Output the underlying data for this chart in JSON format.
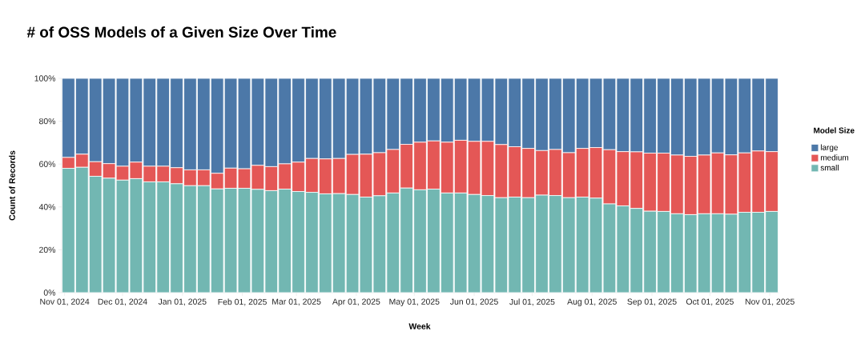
{
  "chart_data": {
    "type": "bar",
    "stacked": true,
    "title": "# of OSS Models of a Given Size Over Time",
    "xlabel": "Week",
    "ylabel": "Count of Records",
    "legend_title": "Model Size",
    "legend": "right",
    "x": [
      "2024-11-03",
      "2024-11-10",
      "2024-11-17",
      "2024-11-24",
      "2024-12-01",
      "2024-12-08",
      "2024-12-15",
      "2024-12-22",
      "2024-12-29",
      "2025-01-05",
      "2025-01-12",
      "2025-01-19",
      "2025-01-26",
      "2025-02-02",
      "2025-02-09",
      "2025-02-16",
      "2025-02-23",
      "2025-03-02",
      "2025-03-09",
      "2025-03-16",
      "2025-03-23",
      "2025-03-30",
      "2025-04-06",
      "2025-04-13",
      "2025-04-20",
      "2025-04-27",
      "2025-05-04",
      "2025-05-11",
      "2025-05-18",
      "2025-05-25",
      "2025-06-01",
      "2025-06-08",
      "2025-06-15",
      "2025-06-22",
      "2025-06-29",
      "2025-07-06",
      "2025-07-13",
      "2025-07-20",
      "2025-07-27",
      "2025-08-03",
      "2025-08-10",
      "2025-08-17",
      "2025-08-24",
      "2025-08-31",
      "2025-09-07",
      "2025-09-14",
      "2025-09-21",
      "2025-09-28",
      "2025-10-05",
      "2025-10-12",
      "2025-10-19",
      "2025-10-26",
      "2025-11-02"
    ],
    "series": [
      {
        "name": "small",
        "color": "#72b7b2",
        "values": [
          58.0,
          58.5,
          54.3,
          53.4,
          52.5,
          53.2,
          51.7,
          51.7,
          50.8,
          49.9,
          49.9,
          48.4,
          48.7,
          48.7,
          48.2,
          47.6,
          48.3,
          47.2,
          46.8,
          46.1,
          46.2,
          45.8,
          44.6,
          45.2,
          46.5,
          48.8,
          48.0,
          48.3,
          46.5,
          46.5,
          45.8,
          45.3,
          44.3,
          44.6,
          44.3,
          45.5,
          45.3,
          44.3,
          44.6,
          44.1,
          41.4,
          40.5,
          39.3,
          38.0,
          37.9,
          36.8,
          36.4,
          36.8,
          36.8,
          36.6,
          37.5,
          37.5,
          37.9
        ]
      },
      {
        "name": "medium",
        "color": "#e45756",
        "values": [
          5.1,
          6.1,
          6.8,
          6.8,
          6.5,
          7.7,
          7.3,
          7.3,
          7.5,
          7.4,
          7.4,
          7.3,
          9.4,
          9.1,
          11.2,
          11.2,
          11.8,
          13.7,
          15.8,
          16.3,
          16.4,
          18.7,
          20.0,
          20.1,
          20.3,
          20.4,
          22.2,
          22.5,
          23.7,
          24.6,
          24.8,
          25.3,
          24.8,
          23.5,
          23.0,
          20.8,
          21.5,
          21.0,
          22.7,
          23.6,
          25.3,
          25.3,
          26.4,
          27.1,
          27.2,
          27.4,
          27.2,
          27.4,
          28.4,
          27.7,
          27.7,
          28.6,
          27.9
        ]
      },
      {
        "name": "large",
        "color": "#4c78a8",
        "values": [
          36.9,
          35.4,
          38.9,
          39.8,
          41.0,
          39.1,
          41.0,
          41.0,
          41.7,
          42.7,
          42.7,
          44.3,
          41.9,
          42.2,
          40.6,
          41.2,
          39.9,
          39.1,
          37.4,
          37.6,
          37.4,
          35.5,
          35.4,
          34.7,
          33.2,
          30.8,
          29.8,
          29.2,
          29.8,
          28.9,
          29.4,
          29.4,
          30.9,
          31.9,
          32.7,
          33.7,
          33.2,
          34.7,
          32.7,
          32.3,
          33.3,
          34.2,
          34.3,
          34.9,
          34.9,
          35.8,
          36.4,
          35.8,
          34.8,
          35.7,
          34.8,
          33.9,
          34.2
        ]
      }
    ],
    "xlim": [
      "2024-10-30T12:00",
      "2025-11-05T12:00"
    ],
    "xticks": [
      {
        "value": "2024-11-01",
        "label": "Nov 01, 2024"
      },
      {
        "value": "2024-12-01",
        "label": "Dec 01, 2024"
      },
      {
        "value": "2025-01-01",
        "label": "Jan 01, 2025"
      },
      {
        "value": "2025-02-01",
        "label": "Feb 01, 2025"
      },
      {
        "value": "2025-03-01",
        "label": "Mar 01, 2025"
      },
      {
        "value": "2025-04-01",
        "label": "Apr 01, 2025"
      },
      {
        "value": "2025-05-01",
        "label": "May 01, 2025"
      },
      {
        "value": "2025-06-01",
        "label": "Jun 01, 2025"
      },
      {
        "value": "2025-07-01",
        "label": "Jul 01, 2025"
      },
      {
        "value": "2025-08-01",
        "label": "Aug 01, 2025"
      },
      {
        "value": "2025-09-01",
        "label": "Sep 01, 2025"
      },
      {
        "value": "2025-10-01",
        "label": "Oct 01, 2025"
      },
      {
        "value": "2025-11-01",
        "label": "Nov 01, 2025"
      }
    ],
    "ylim": [
      0,
      100
    ],
    "yticks": [
      {
        "value": 0,
        "label": "0%"
      },
      {
        "value": 20,
        "label": "20%"
      },
      {
        "value": 40,
        "label": "40%"
      },
      {
        "value": 60,
        "label": "60%"
      },
      {
        "value": 80,
        "label": "80%"
      },
      {
        "value": 100,
        "label": "100%"
      }
    ]
  }
}
